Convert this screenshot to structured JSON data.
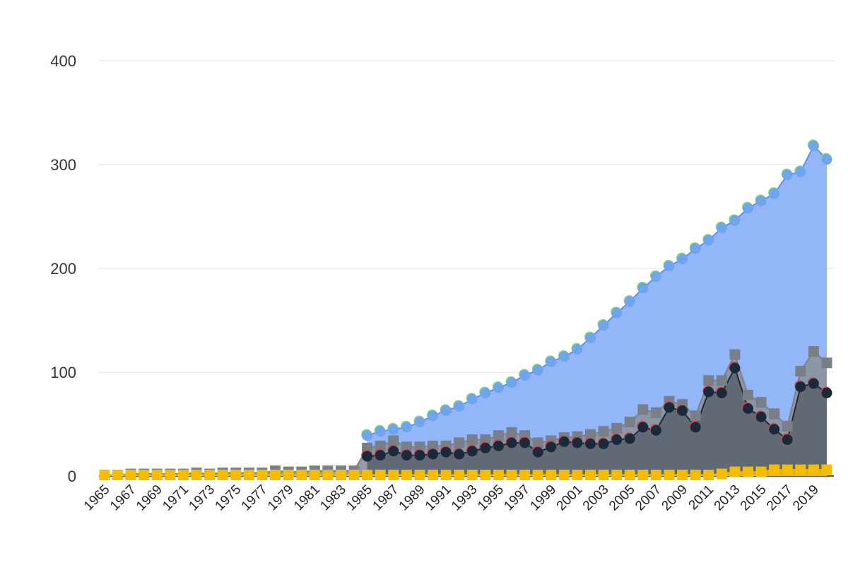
{
  "chart_data": {
    "type": "area",
    "title": "",
    "xlabel": "",
    "ylabel": "",
    "x": [
      1965,
      1966,
      1967,
      1968,
      1969,
      1970,
      1971,
      1972,
      1973,
      1974,
      1975,
      1976,
      1977,
      1978,
      1979,
      1980,
      1981,
      1982,
      1983,
      1984,
      1985,
      1986,
      1987,
      1988,
      1989,
      1990,
      1991,
      1992,
      1993,
      1994,
      1995,
      1996,
      1997,
      1998,
      1999,
      2000,
      2001,
      2002,
      2003,
      2004,
      2005,
      2006,
      2007,
      2008,
      2009,
      2010,
      2011,
      2012,
      2013,
      2014,
      2015,
      2016,
      2017,
      2018,
      2019,
      2020
    ],
    "xticks": [
      "1965",
      "1967",
      "1969",
      "1971",
      "1973",
      "1975",
      "1977",
      "1979",
      "1981",
      "1983",
      "1985",
      "1987",
      "1989",
      "1991",
      "1993",
      "1995",
      "1997",
      "1999",
      "2001",
      "2003",
      "2005",
      "2007",
      "2009",
      "2011",
      "2013",
      "2015",
      "2017",
      "2019"
    ],
    "yticks": [
      "0",
      "100",
      "200",
      "300",
      "400"
    ],
    "ylim": [
      0,
      400
    ],
    "grid": true,
    "legend": "none",
    "series": [
      {
        "color": "#7fa9f7",
        "line_color": "#5b8fe0",
        "marker": "circle",
        "marker_color": "#6fa4ee",
        "marker_edge": "#7dd97d",
        "values": [
          null,
          null,
          null,
          null,
          null,
          null,
          null,
          null,
          null,
          null,
          null,
          null,
          null,
          null,
          null,
          null,
          null,
          null,
          null,
          null,
          39,
          43,
          45,
          47,
          52,
          58,
          63,
          67,
          74,
          80,
          85,
          90,
          97,
          102,
          110,
          115,
          122,
          133,
          145,
          157,
          168,
          181,
          192,
          202,
          209,
          219,
          227,
          239,
          246,
          258,
          265,
          272,
          290,
          293,
          318,
          305
        ]
      },
      {
        "color": "#8b929c",
        "line_color": "#7a8089",
        "marker": "square",
        "marker_color": "#797f88",
        "values": [
          1,
          1,
          2,
          2,
          2,
          2,
          2,
          3,
          2,
          3,
          3,
          3,
          3,
          5,
          4,
          4,
          5,
          5,
          5,
          5,
          27,
          29,
          34,
          28,
          28,
          29,
          29,
          32,
          35,
          35,
          39,
          42,
          39,
          32,
          34,
          37,
          38,
          40,
          43,
          46,
          52,
          64,
          61,
          72,
          69,
          58,
          92,
          92,
          117,
          78,
          71,
          60,
          48,
          101,
          120,
          109
        ]
      },
      {
        "color": "#5c6470",
        "line_color": "#1e2a36",
        "marker": "circle",
        "marker_color": "#1b2a3a",
        "marker_edge": "#d24b4b",
        "values": [
          null,
          null,
          null,
          null,
          null,
          null,
          null,
          null,
          null,
          null,
          null,
          null,
          null,
          null,
          null,
          null,
          null,
          null,
          null,
          null,
          19,
          20,
          24,
          20,
          20,
          21,
          23,
          21,
          24,
          27,
          29,
          32,
          32,
          23,
          28,
          33,
          32,
          31,
          31,
          35,
          36,
          47,
          44,
          66,
          63,
          47,
          81,
          80,
          104,
          65,
          57,
          45,
          35,
          86,
          89,
          80
        ]
      },
      {
        "color": "#f5b800",
        "line_color": "#f5b800",
        "marker": "square",
        "marker_color": "#f5bd00",
        "values": [
          1,
          1,
          1,
          1,
          1,
          1,
          1,
          1,
          1,
          1,
          1,
          1,
          1,
          1,
          1,
          1,
          1,
          1,
          1,
          1,
          1,
          1,
          1,
          1,
          1,
          1,
          1,
          1,
          1,
          1,
          1,
          1,
          1,
          1,
          1,
          1,
          1,
          1,
          1,
          1,
          1,
          1,
          1,
          1,
          1,
          1,
          1,
          2,
          4,
          4,
          4,
          6,
          6,
          6,
          6,
          6
        ]
      }
    ]
  }
}
